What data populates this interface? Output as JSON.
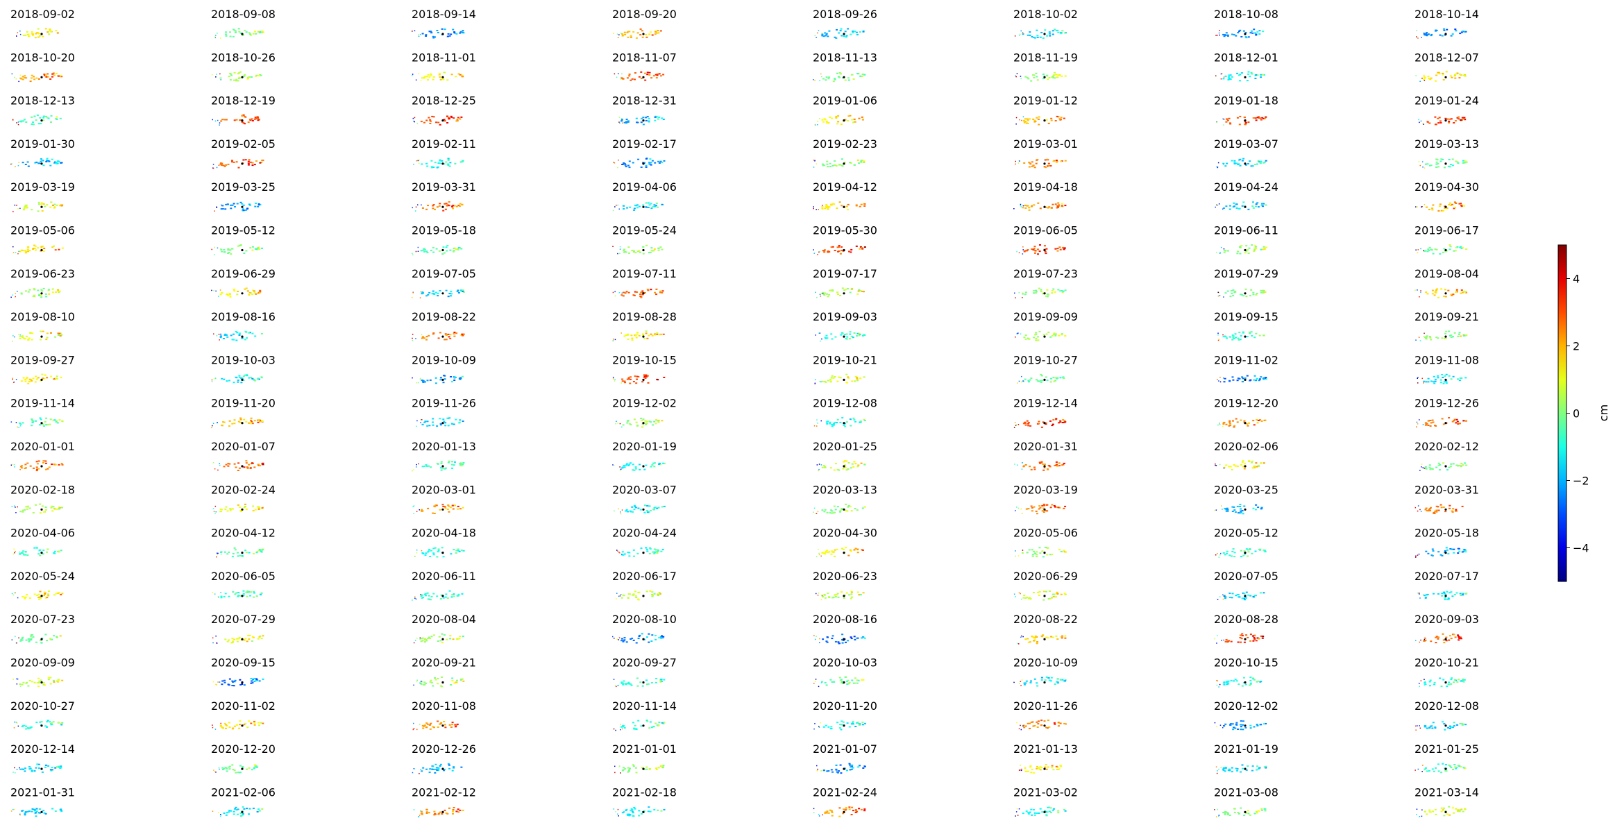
{
  "panels": {
    "titles": [
      "2018-09-02",
      "2018-09-08",
      "2018-09-14",
      "2018-09-20",
      "2018-09-26",
      "2018-10-02",
      "2018-10-08",
      "2018-10-14",
      "2018-10-20",
      "2018-10-26",
      "2018-11-01",
      "2018-11-07",
      "2018-11-13",
      "2018-11-19",
      "2018-12-01",
      "2018-12-07",
      "2018-12-13",
      "2018-12-19",
      "2018-12-25",
      "2018-12-31",
      "2019-01-06",
      "2019-01-12",
      "2019-01-18",
      "2019-01-24",
      "2019-01-30",
      "2019-02-05",
      "2019-02-11",
      "2019-02-17",
      "2019-02-23",
      "2019-03-01",
      "2019-03-07",
      "2019-03-13",
      "2019-03-19",
      "2019-03-25",
      "2019-03-31",
      "2019-04-06",
      "2019-04-12",
      "2019-04-18",
      "2019-04-24",
      "2019-04-30",
      "2019-05-06",
      "2019-05-12",
      "2019-05-18",
      "2019-05-24",
      "2019-05-30",
      "2019-06-05",
      "2019-06-11",
      "2019-06-17",
      "2019-06-23",
      "2019-06-29",
      "2019-07-05",
      "2019-07-11",
      "2019-07-17",
      "2019-07-23",
      "2019-07-29",
      "2019-08-04",
      "2019-08-10",
      "2019-08-16",
      "2019-08-22",
      "2019-08-28",
      "2019-09-03",
      "2019-09-09",
      "2019-09-15",
      "2019-09-21",
      "2019-09-27",
      "2019-10-03",
      "2019-10-09",
      "2019-10-15",
      "2019-10-21",
      "2019-10-27",
      "2019-11-02",
      "2019-11-08",
      "2019-11-14",
      "2019-11-20",
      "2019-11-26",
      "2019-12-02",
      "2019-12-08",
      "2019-12-14",
      "2019-12-20",
      "2019-12-26",
      "2020-01-01",
      "2020-01-07",
      "2020-01-13",
      "2020-01-19",
      "2020-01-25",
      "2020-01-31",
      "2020-02-06",
      "2020-02-12",
      "2020-02-18",
      "2020-02-24",
      "2020-03-01",
      "2020-03-07",
      "2020-03-13",
      "2020-03-19",
      "2020-03-25",
      "2020-03-31",
      "2020-04-06",
      "2020-04-12",
      "2020-04-18",
      "2020-04-24",
      "2020-04-30",
      "2020-05-06",
      "2020-05-12",
      "2020-05-18",
      "2020-05-24",
      "2020-06-05",
      "2020-06-11",
      "2020-06-17",
      "2020-06-23",
      "2020-06-29",
      "2020-07-05",
      "2020-07-17",
      "2020-07-23",
      "2020-07-29",
      "2020-08-04",
      "2020-08-10",
      "2020-08-16",
      "2020-08-22",
      "2020-08-28",
      "2020-09-03",
      "2020-09-09",
      "2020-09-15",
      "2020-09-21",
      "2020-09-27",
      "2020-10-03",
      "2020-10-09",
      "2020-10-15",
      "2020-10-21",
      "2020-10-27",
      "2020-11-02",
      "2020-11-08",
      "2020-11-14",
      "2020-11-20",
      "2020-11-26",
      "2020-12-02",
      "2020-12-08",
      "2020-12-14",
      "2020-12-20",
      "2020-12-26",
      "2021-01-01",
      "2021-01-07",
      "2021-01-13",
      "2021-01-19",
      "2021-01-25",
      "2021-01-31",
      "2021-02-06",
      "2021-02-12",
      "2021-02-18",
      "2021-02-24",
      "2021-03-02",
      "2021-03-08",
      "2021-03-14"
    ]
  },
  "colorbar": {
    "label": "cm",
    "colormap": "jet",
    "lim": [
      -5,
      5
    ],
    "ticks": [
      {
        "value": -4,
        "label": "−4"
      },
      {
        "value": -2,
        "label": "−2"
      },
      0,
      2,
      4
    ]
  }
}
